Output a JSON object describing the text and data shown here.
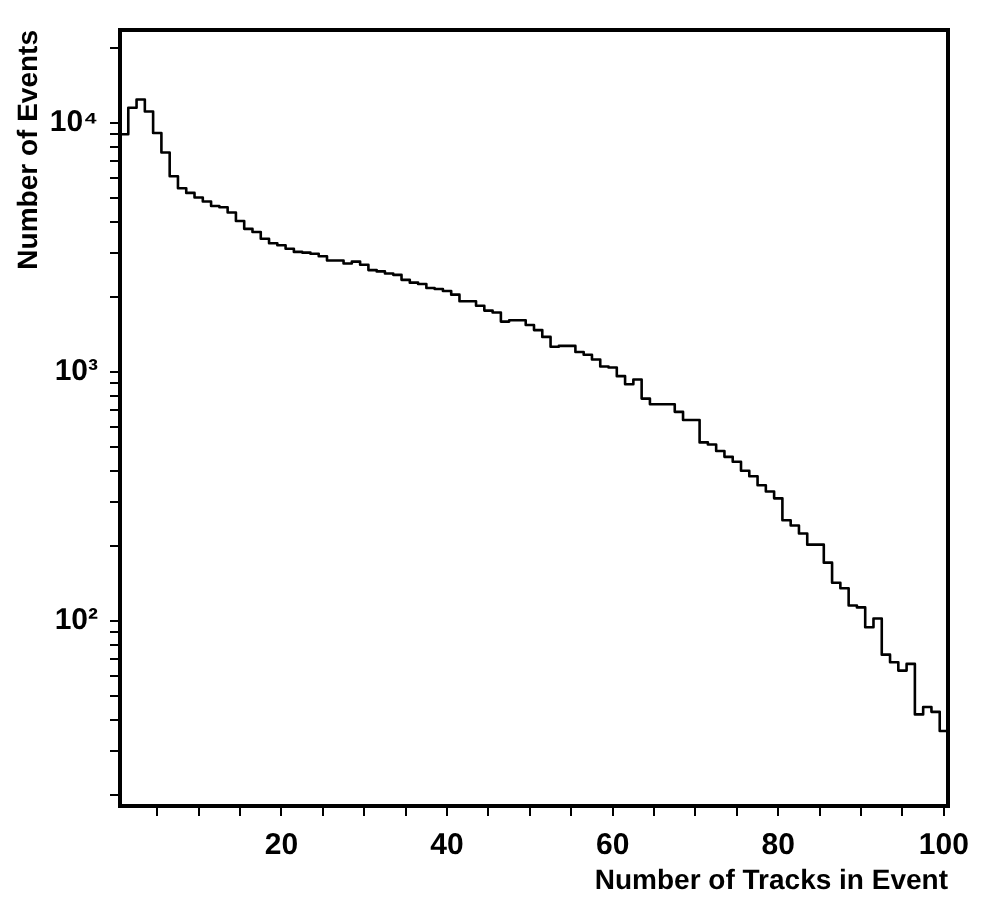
{
  "chart_data": {
    "type": "histogram",
    "xlabel": "Number of Tracks in Event",
    "ylabel": "Number of Events",
    "color": "#000000",
    "log": "y",
    "grid": false,
    "legend": false,
    "xlim": [
      0.5,
      100.5
    ],
    "ylim": [
      18,
      23600
    ],
    "xticks": [
      {
        "value": 5,
        "label": null
      },
      {
        "value": 10,
        "label": null
      },
      {
        "value": 15,
        "label": null
      },
      20,
      {
        "value": 25,
        "label": null
      },
      {
        "value": 30,
        "label": null
      },
      {
        "value": 35,
        "label": null
      },
      40,
      {
        "value": 45,
        "label": null
      },
      {
        "value": 50,
        "label": null
      },
      {
        "value": 55,
        "label": null
      },
      60,
      {
        "value": 65,
        "label": null
      },
      {
        "value": 70,
        "label": null
      },
      {
        "value": 75,
        "label": null
      },
      80,
      {
        "value": 85,
        "label": null
      },
      {
        "value": 90,
        "label": null
      },
      {
        "value": 95,
        "label": null
      },
      100
    ],
    "yticks": [
      {
        "value": 20,
        "label": null
      },
      {
        "value": 30,
        "label": null
      },
      {
        "value": 40,
        "label": null
      },
      {
        "value": 50,
        "label": null
      },
      {
        "value": 60,
        "label": null
      },
      {
        "value": 70,
        "label": null
      },
      {
        "value": 80,
        "label": null
      },
      {
        "value": 90,
        "label": null
      },
      {
        "value": 100,
        "label": "10²"
      },
      {
        "value": 200,
        "label": null
      },
      {
        "value": 300,
        "label": null
      },
      {
        "value": 400,
        "label": null
      },
      {
        "value": 500,
        "label": null
      },
      {
        "value": 600,
        "label": null
      },
      {
        "value": 700,
        "label": null
      },
      {
        "value": 800,
        "label": null
      },
      {
        "value": 900,
        "label": null
      },
      {
        "value": 1000,
        "label": "10³"
      },
      {
        "value": 2000,
        "label": null
      },
      {
        "value": 3000,
        "label": null
      },
      {
        "value": 4000,
        "label": null
      },
      {
        "value": 5000,
        "label": null
      },
      {
        "value": 6000,
        "label": null
      },
      {
        "value": 7000,
        "label": null
      },
      {
        "value": 8000,
        "label": null
      },
      {
        "value": 9000,
        "label": null
      },
      {
        "value": 10000,
        "label": "10⁴"
      },
      {
        "value": 20000,
        "label": null
      }
    ],
    "bins": [
      0.5,
      1.5,
      2.5,
      3.5,
      4.5,
      5.5,
      6.5,
      7.5,
      8.5,
      9.5,
      10.5,
      11.5,
      12.5,
      13.5,
      14.5,
      15.5,
      16.5,
      17.5,
      18.5,
      19.5,
      20.5,
      21.5,
      22.5,
      23.5,
      24.5,
      25.5,
      26.5,
      27.5,
      28.5,
      29.5,
      30.5,
      31.5,
      32.5,
      33.5,
      34.5,
      35.5,
      36.5,
      37.5,
      38.5,
      39.5,
      40.5,
      41.5,
      42.5,
      43.5,
      44.5,
      45.5,
      46.5,
      47.5,
      48.5,
      49.5,
      50.5,
      51.5,
      52.5,
      53.5,
      54.5,
      55.5,
      56.5,
      57.5,
      58.5,
      59.5,
      60.5,
      61.5,
      62.5,
      63.5,
      64.5,
      65.5,
      66.5,
      67.5,
      68.5,
      69.5,
      70.5,
      71.5,
      72.5,
      73.5,
      74.5,
      75.5,
      76.5,
      77.5,
      78.5,
      79.5,
      80.5,
      81.5,
      82.5,
      83.5,
      84.5,
      85.5,
      86.5,
      87.5,
      88.5,
      89.5,
      90.5,
      91.5,
      92.5,
      93.5,
      94.5,
      95.5,
      96.5,
      97.5,
      98.5,
      99.5,
      100.5
    ],
    "values": [
      9000,
      11500,
      12400,
      11100,
      9100,
      7600,
      6100,
      5460,
      5230,
      5010,
      4830,
      4630,
      4580,
      4360,
      4030,
      3750,
      3640,
      3420,
      3280,
      3220,
      3120,
      3030,
      3010,
      2980,
      2910,
      2800,
      2800,
      2720,
      2770,
      2690,
      2560,
      2530,
      2480,
      2450,
      2340,
      2280,
      2250,
      2170,
      2150,
      2110,
      2040,
      1920,
      1920,
      1840,
      1760,
      1730,
      1590,
      1610,
      1610,
      1540,
      1470,
      1380,
      1260,
      1270,
      1270,
      1200,
      1170,
      1120,
      1050,
      1040,
      960,
      890,
      930,
      780,
      740,
      740,
      740,
      690,
      640,
      640,
      520,
      510,
      480,
      455,
      435,
      400,
      380,
      350,
      330,
      310,
      253,
      241,
      224,
      202,
      202,
      171,
      142,
      135,
      115,
      113,
      94,
      102,
      73,
      68,
      63,
      67,
      42,
      45,
      43,
      36
    ]
  }
}
